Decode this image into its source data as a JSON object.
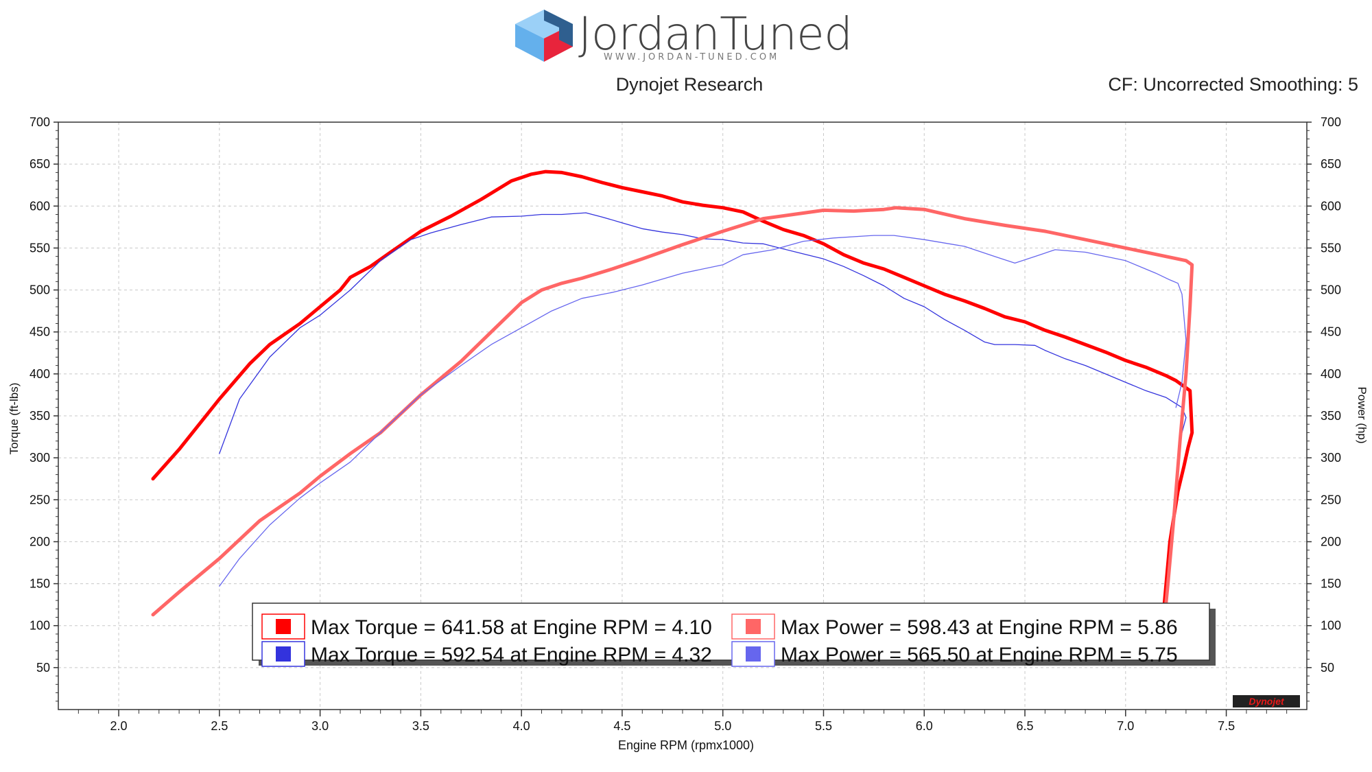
{
  "header": {
    "logo_text": "JordanTuned",
    "logo_subtext": "WWW.JORDAN-TUNED.COM",
    "subtitle": "Dynojet Research",
    "settings": "CF: Uncorrected Smoothing: 5",
    "dyno_logo": "Dynojet"
  },
  "chart_data": {
    "type": "line",
    "title": "",
    "xlabel": "Engine RPM (rpmx1000)",
    "ylabel_left": "Torque (ft-lbs)",
    "ylabel_right": "Power (hp)",
    "xlim": [
      1.7,
      7.9
    ],
    "ylim": [
      0,
      700
    ],
    "x_ticks": [
      2.0,
      2.5,
      3.0,
      3.5,
      4.0,
      4.5,
      5.0,
      5.5,
      6.0,
      6.5,
      7.0,
      7.5
    ],
    "y_ticks": [
      50,
      100,
      150,
      200,
      250,
      300,
      350,
      400,
      450,
      500,
      550,
      600,
      650,
      700
    ],
    "grid": true,
    "colors": {
      "run1_torque": "#ff0000",
      "run2_torque": "#3333dd",
      "run1_power": "#ff6666",
      "run2_power": "#6666ee"
    },
    "series": [
      {
        "key": "run1_torque",
        "x": [
          2.17,
          2.3,
          2.5,
          2.65,
          2.75,
          2.9,
          3.0,
          3.1,
          3.15,
          3.25,
          3.35,
          3.5,
          3.65,
          3.8,
          3.95,
          4.05,
          4.12,
          4.2,
          4.3,
          4.4,
          4.5,
          4.6,
          4.7,
          4.8,
          4.9,
          5.0,
          5.1,
          5.2,
          5.3,
          5.4,
          5.5,
          5.6,
          5.7,
          5.8,
          5.9,
          6.0,
          6.1,
          6.2,
          6.3,
          6.4,
          6.5,
          6.6,
          6.7,
          6.8,
          6.9,
          7.0,
          7.1,
          7.2,
          7.25,
          7.32,
          7.33,
          7.31,
          7.29,
          7.26,
          7.22,
          7.19,
          7.18
        ],
        "values": [
          275,
          310,
          370,
          412,
          435,
          460,
          480,
          500,
          515,
          528,
          545,
          570,
          588,
          608,
          630,
          638,
          641,
          640,
          635,
          628,
          622,
          617,
          612,
          605,
          601,
          598,
          593,
          582,
          572,
          565,
          555,
          542,
          532,
          525,
          515,
          505,
          495,
          487,
          478,
          468,
          462,
          452,
          444,
          435,
          426,
          416,
          408,
          398,
          392,
          380,
          330,
          312,
          290,
          260,
          200,
          120,
          58
        ]
      },
      {
        "key": "run2_torque",
        "x": [
          2.5,
          2.6,
          2.75,
          2.9,
          3.0,
          3.15,
          3.3,
          3.45,
          3.55,
          3.7,
          3.85,
          4.0,
          4.1,
          4.2,
          4.32,
          4.4,
          4.5,
          4.6,
          4.7,
          4.8,
          4.9,
          5.0,
          5.1,
          5.2,
          5.3,
          5.4,
          5.5,
          5.6,
          5.7,
          5.8,
          5.9,
          6.0,
          6.1,
          6.2,
          6.3,
          6.35,
          6.45,
          6.55,
          6.6,
          6.7,
          6.8,
          6.9,
          7.0,
          7.1,
          7.2,
          7.28,
          7.3,
          7.28
        ],
        "values": [
          305,
          370,
          420,
          455,
          470,
          500,
          535,
          560,
          568,
          578,
          587,
          588,
          590,
          590,
          592,
          587,
          580,
          573,
          569,
          566,
          561,
          560,
          556,
          555,
          549,
          543,
          537,
          528,
          517,
          505,
          490,
          480,
          465,
          452,
          438,
          435,
          435,
          434,
          428,
          418,
          410,
          400,
          390,
          380,
          372,
          360,
          348,
          330
        ]
      },
      {
        "key": "run1_power",
        "x": [
          2.17,
          2.3,
          2.5,
          2.7,
          2.9,
          3.0,
          3.15,
          3.3,
          3.5,
          3.7,
          3.85,
          4.0,
          4.1,
          4.2,
          4.3,
          4.45,
          4.6,
          4.8,
          5.0,
          5.2,
          5.35,
          5.5,
          5.65,
          5.8,
          5.86,
          6.0,
          6.2,
          6.4,
          6.6,
          6.8,
          7.0,
          7.2,
          7.3,
          7.33,
          7.32,
          7.3,
          7.27,
          7.24,
          7.21,
          7.19
        ],
        "values": [
          113,
          140,
          180,
          225,
          258,
          278,
          305,
          330,
          375,
          415,
          450,
          485,
          500,
          508,
          514,
          525,
          537,
          554,
          570,
          585,
          590,
          595,
          594,
          596,
          598,
          596,
          585,
          577,
          570,
          560,
          550,
          540,
          535,
          530,
          480,
          400,
          320,
          230,
          150,
          100
        ]
      },
      {
        "key": "run2_power",
        "x": [
          2.5,
          2.6,
          2.75,
          2.9,
          3.0,
          3.15,
          3.3,
          3.5,
          3.7,
          3.85,
          4.0,
          4.15,
          4.3,
          4.45,
          4.6,
          4.8,
          5.0,
          5.1,
          5.25,
          5.4,
          5.55,
          5.75,
          5.85,
          6.0,
          6.2,
          6.35,
          6.45,
          6.55,
          6.65,
          6.8,
          7.0,
          7.15,
          7.22,
          7.26,
          7.28,
          7.3,
          7.28,
          7.25
        ],
        "values": [
          147,
          180,
          220,
          252,
          270,
          295,
          330,
          375,
          410,
          435,
          455,
          475,
          490,
          497,
          506,
          520,
          530,
          542,
          548,
          558,
          562,
          565,
          565,
          560,
          552,
          540,
          532,
          540,
          548,
          545,
          535,
          520,
          512,
          508,
          495,
          440,
          390,
          360
        ]
      }
    ],
    "legend": {
      "placement": "bottom-center",
      "entries": [
        {
          "key": "run1_torque",
          "text": "Max Torque = 641.58 at Engine RPM = 4.10"
        },
        {
          "key": "run1_power",
          "text": "Max Power = 598.43 at Engine RPM = 5.86"
        },
        {
          "key": "run2_torque",
          "text": "Max Torque = 592.54 at Engine RPM = 4.32"
        },
        {
          "key": "run2_power",
          "text": "Max Power = 565.50 at Engine RPM = 5.75"
        }
      ]
    }
  }
}
